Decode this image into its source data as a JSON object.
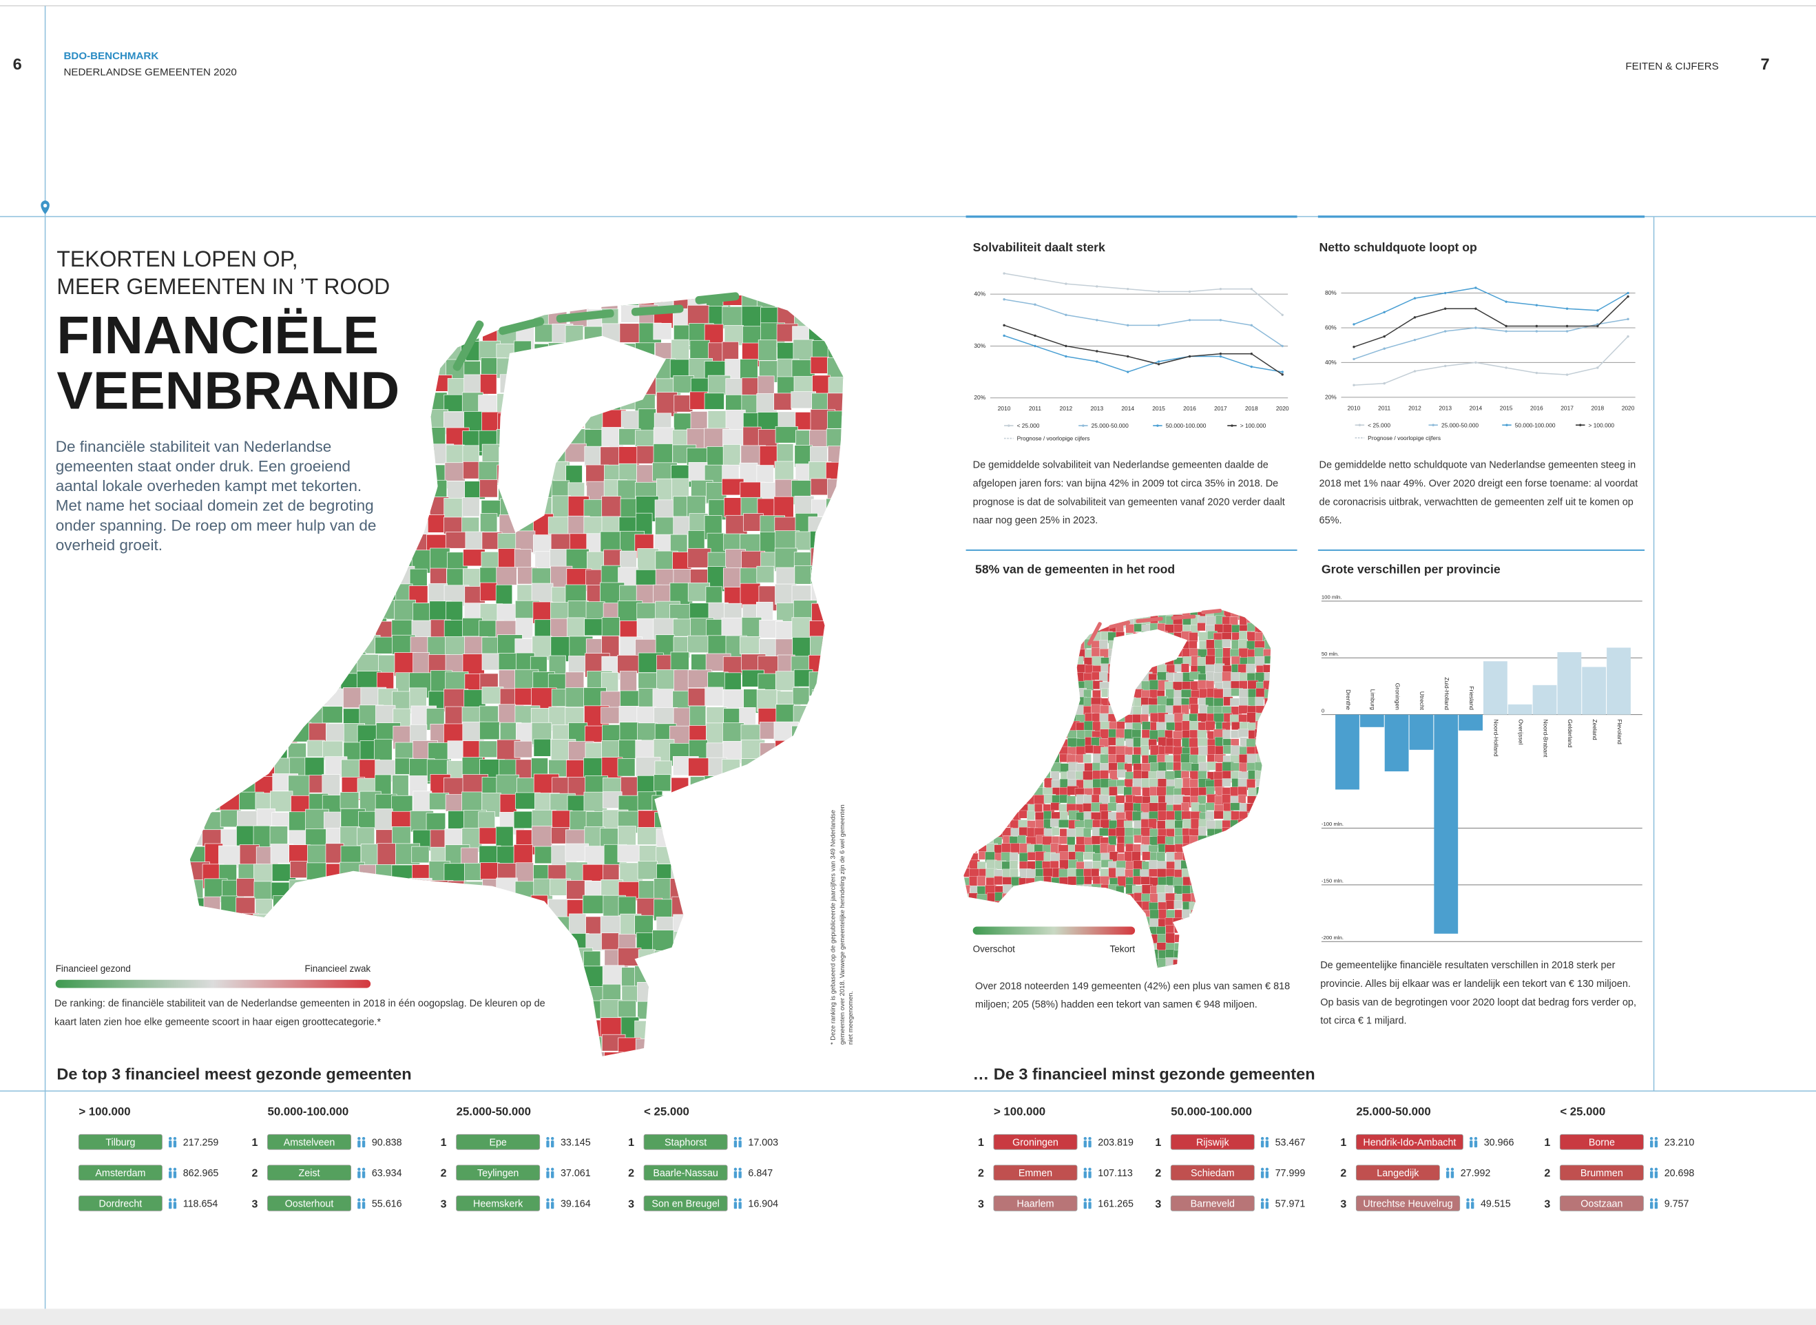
{
  "header": {
    "page_left": "6",
    "brand": "BDO-BENCHMARK",
    "publication": "NEDERLANDSE GEMEENTEN 2020",
    "section": "FEITEN & CIJFERS",
    "page_right": "7"
  },
  "article": {
    "kicker": [
      "TEKORTEN LOPEN OP,",
      "MEER GEMEENTEN IN ’T ROOD"
    ],
    "title": [
      "FINANCIËLE",
      "VEENBRAND"
    ],
    "intro": "De financiële stabiliteit van Nederlandse gemeenten staat onder druk. Een groeiend aantal lokale overheden kampt met tekorten. Met name het sociaal domein zet de begroting onder spanning. De roep om meer hulp van de overheid groeit.",
    "map_legend": {
      "low": "Financieel gezond",
      "high": "Financieel zwak",
      "colors": [
        "#3f9a50",
        "#dcdcdc",
        "#d4393f"
      ]
    },
    "map_caption": "De ranking: de financiële stabiliteit van de Nederlandse gemeenten in 2018 in één oogopslag. De kleuren op de kaart laten zien hoe elke gemeente scoort in haar eigen groottecategorie.*",
    "footnote": "* Deze ranking is gebaseerd op de gepubliceerde jaarcijfers van 349 Nederlandse gemeenten over 2018. Vanwege gemeentelijke herindeling zijn de 6 wel gemeenten niet meegenomen."
  },
  "map_panel": {
    "title": "58% van de gemeenten in het rood",
    "legend_low": "Overschot",
    "legend_high": "Tekort",
    "legend_colors": [
      "#3f9a50",
      "#c9d9c4",
      "#d4393f"
    ],
    "caption": "Over 2018 noteerden 149 gemeenten (42%) een plus van samen € 818 miljoen; 205 (58%) hadden een tekort van samen € 948 miljoen."
  },
  "chart_data": [
    {
      "type": "line",
      "title": "Solvabiliteit daalt sterk",
      "categories": [
        "2010",
        "2011",
        "2012",
        "2013",
        "2014",
        "2015",
        "2016",
        "2017",
        "2018",
        "2020"
      ],
      "series": [
        {
          "name": "< 25.000",
          "color": "#c3ced6",
          "values": [
            44,
            43,
            42,
            41.5,
            41,
            40.5,
            40.5,
            41,
            41,
            36
          ]
        },
        {
          "name": "25.000-50.000",
          "color": "#8dbad9",
          "values": [
            39,
            38,
            36,
            35,
            34,
            34,
            35,
            35,
            34,
            30
          ]
        },
        {
          "name": "50.000-100.000",
          "color": "#4a9fd3",
          "values": [
            32,
            30,
            28,
            27,
            25,
            27,
            28,
            28,
            26,
            25
          ]
        },
        {
          "name": "> 100.000",
          "color": "#3a3a3a",
          "values": [
            34,
            32,
            30,
            29,
            28,
            26.5,
            28,
            28.5,
            28.5,
            24.5
          ]
        }
      ],
      "note": "Prognose / voorlopige cijfers",
      "ylim": [
        20,
        45
      ],
      "yticks": [
        {
          "value": 20,
          "label": "20%"
        },
        {
          "value": 30,
          "label": "30%"
        },
        {
          "value": 40,
          "label": "40%"
        }
      ],
      "grid": true,
      "caption": "De gemiddelde solvabiliteit van Nederlandse gemeenten daalde de afgelopen jaren fors: van bijna 42% in 2009 tot circa 35% in 2018. De prognose is dat de solvabiliteit van gemeenten vanaf 2020 verder daalt naar nog geen 25% in 2023."
    },
    {
      "type": "line",
      "title": "Netto schuldquote loopt op",
      "categories": [
        "2010",
        "2011",
        "2012",
        "2013",
        "2014",
        "2015",
        "2016",
        "2017",
        "2018",
        "2020"
      ],
      "series": [
        {
          "name": "< 25.000",
          "color": "#c3ced6",
          "values": [
            27,
            28,
            35,
            38,
            40,
            37,
            34,
            33,
            37,
            55
          ]
        },
        {
          "name": "25.000-50.000",
          "color": "#8dbad9",
          "values": [
            42,
            48,
            53,
            58,
            60,
            58,
            58,
            58,
            62,
            65
          ]
        },
        {
          "name": "50.000-100.000",
          "color": "#4a9fd3",
          "values": [
            62,
            69,
            77,
            80,
            83,
            75,
            73,
            71,
            70,
            80
          ]
        },
        {
          "name": "> 100.000",
          "color": "#3a3a3a",
          "values": [
            49,
            55,
            66,
            71,
            71,
            61,
            61,
            61,
            61,
            78
          ]
        }
      ],
      "note": "Prognose / voorlopige cijfers",
      "ylim": [
        20,
        85
      ],
      "yticks": [
        {
          "value": 20,
          "label": "20%"
        },
        {
          "value": 40,
          "label": "40%"
        },
        {
          "value": 60,
          "label": "60%"
        },
        {
          "value": 80,
          "label": "80%"
        }
      ],
      "grid": true,
      "caption": "De gemiddelde netto schuldquote van Nederlandse gemeenten steeg in 2018 met 1% naar 49%. Over 2020 dreigt een forse toename: al voordat de coronacrisis uitbrak, verwachtten de gemeenten zelf uit te komen op 65%."
    },
    {
      "type": "bar",
      "title": "Grote verschillen per provincie",
      "categories": [
        "Drenthe",
        "Limburg",
        "Groningen",
        "Utrecht",
        "Zuid-Holland",
        "Friesland",
        "Noord-Holland",
        "Overijssel",
        "Noord-Brabant",
        "Gelderland",
        "Zeeland",
        "Flevoland"
      ],
      "values": [
        -66,
        -11,
        -50,
        -31,
        -193,
        -14,
        47,
        9,
        26,
        55,
        42,
        59
      ],
      "negative_color": "#4b9fcf",
      "positive_color": "#c6dde9",
      "ylim": [
        -200,
        100
      ],
      "yticks": [
        {
          "value": 100,
          "label": "100 mln."
        },
        {
          "value": 50,
          "label": "50 mln."
        },
        0,
        {
          "value": -100,
          "label": "-100 mln."
        },
        {
          "value": -150,
          "label": "-150 mln."
        },
        {
          "value": -200,
          "label": "-200 mln."
        }
      ],
      "grid": true,
      "caption": "De gemeentelijke financiële resultaten verschillen in 2018 sterk per provincie. Alles bij elkaar was er landelijk een tekort van € 130 miljoen. Op basis van de begrotingen voor 2020 loopt dat bedrag fors verder op, tot circa € 1 miljard."
    }
  ],
  "tables": {
    "healthy": {
      "heading": "De top 3 financieel meest gezonde gemeenten",
      "badge_colors": [
        "#55a05e",
        "#55a05e",
        "#55a05e"
      ],
      "groups": [
        {
          "header": "> 100.000",
          "rows": [
            {
              "name": "Tilburg",
              "population": "217.259"
            },
            {
              "name": "Amsterdam",
              "population": "862.965"
            },
            {
              "name": "Dordrecht",
              "population": "118.654"
            }
          ]
        },
        {
          "header": "50.000-100.000",
          "rows": [
            {
              "rank": 1,
              "name": "Amstelveen",
              "population": "90.838"
            },
            {
              "rank": 2,
              "name": "Zeist",
              "population": "63.934"
            },
            {
              "rank": 3,
              "name": "Oosterhout",
              "population": "55.616"
            }
          ]
        },
        {
          "header": "25.000-50.000",
          "rows": [
            {
              "rank": 1,
              "name": "Epe",
              "population": "33.145"
            },
            {
              "rank": 2,
              "name": "Teylingen",
              "population": "37.061"
            },
            {
              "rank": 3,
              "name": "Heemskerk",
              "population": "39.164"
            }
          ]
        },
        {
          "header": "< 25.000",
          "rows": [
            {
              "rank": 1,
              "name": "Staphorst",
              "population": "17.003"
            },
            {
              "rank": 2,
              "name": "Baarle-Nassau",
              "population": "6.847"
            },
            {
              "rank": 3,
              "name": "Son en Breugel",
              "population": "16.904"
            }
          ]
        }
      ]
    },
    "unhealthy": {
      "heading": "… De 3 financieel minst gezonde gemeenten",
      "badge_colors": [
        "#c93a41",
        "#c0504f",
        "#b87577"
      ],
      "groups": [
        {
          "header": "> 100.000",
          "rows": [
            {
              "rank": 1,
              "name": "Groningen",
              "population": "203.819"
            },
            {
              "rank": 2,
              "name": "Emmen",
              "population": "107.113"
            },
            {
              "rank": 3,
              "name": "Haarlem",
              "population": "161.265"
            }
          ]
        },
        {
          "header": "50.000-100.000",
          "rows": [
            {
              "rank": 1,
              "name": "Rijswijk",
              "population": "53.467"
            },
            {
              "rank": 2,
              "name": "Schiedam",
              "population": "77.999"
            },
            {
              "rank": 3,
              "name": "Barneveld",
              "population": "57.971"
            }
          ]
        },
        {
          "header": "25.000-50.000",
          "rows": [
            {
              "rank": 1,
              "name": "Hendrik-Ido-Ambacht",
              "population": "30.966"
            },
            {
              "rank": 2,
              "name": "Langedijk",
              "population": "27.992"
            },
            {
              "rank": 3,
              "name": "Utrechtse Heuvelrug",
              "population": "49.515"
            }
          ]
        },
        {
          "header": "< 25.000",
          "rows": [
            {
              "rank": 1,
              "name": "Borne",
              "population": "23.210"
            },
            {
              "rank": 2,
              "name": "Brummen",
              "population": "20.698"
            },
            {
              "rank": 3,
              "name": "Oostzaan",
              "population": "9.757"
            }
          ]
        }
      ]
    }
  }
}
